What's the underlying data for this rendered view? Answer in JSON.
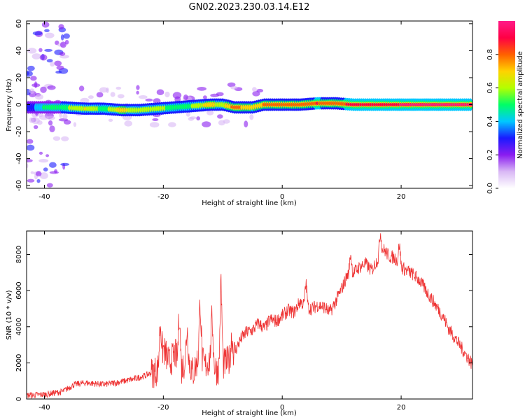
{
  "title": "GN02.2023.230.03.14.E12",
  "chart_data": [
    {
      "type": "heatmap",
      "xlabel": "Height of straight line (km)",
      "ylabel": "Frequency (Hz)",
      "xlim": [
        -43,
        32
      ],
      "ylim": [
        -62,
        62
      ],
      "xticks": [
        -40,
        -20,
        0,
        20
      ],
      "yticks": [
        -60,
        -40,
        -20,
        0,
        20,
        40,
        60
      ],
      "colorbar": {
        "label": "Normalized spectral amplitude",
        "range": [
          0,
          1
        ],
        "ticks": [
          0.0,
          0.2,
          0.4,
          0.6,
          0.8
        ],
        "colors": [
          "#ffffff",
          "#d9b8f5",
          "#8a1cf0",
          "#1a1aff",
          "#00c8ff",
          "#00ff66",
          "#b4ff00",
          "#ffd200",
          "#ff6000",
          "#ff0044",
          "#ff1a88"
        ]
      },
      "ridge": [
        {
          "x": -43,
          "f": -2,
          "a": 0.25
        },
        {
          "x": -40,
          "f": -2,
          "a": 0.45
        },
        {
          "x": -37,
          "f": -2,
          "a": 0.5
        },
        {
          "x": -33,
          "f": -3,
          "a": 0.65
        },
        {
          "x": -30,
          "f": -3,
          "a": 0.5
        },
        {
          "x": -27,
          "f": -4,
          "a": 0.7
        },
        {
          "x": -24,
          "f": -4,
          "a": 0.55
        },
        {
          "x": -21,
          "f": -3,
          "a": 0.6
        },
        {
          "x": -18,
          "f": -2,
          "a": 0.5
        },
        {
          "x": -15,
          "f": -1,
          "a": 0.55
        },
        {
          "x": -12,
          "f": 0,
          "a": 0.7
        },
        {
          "x": -10,
          "f": 0,
          "a": 0.6
        },
        {
          "x": -8,
          "f": -2,
          "a": 0.8
        },
        {
          "x": -5,
          "f": -2,
          "a": 0.65
        },
        {
          "x": -3,
          "f": 0,
          "a": 0.75
        },
        {
          "x": 0,
          "f": 0,
          "a": 0.8
        },
        {
          "x": 3,
          "f": 0,
          "a": 0.75
        },
        {
          "x": 6,
          "f": 1,
          "a": 0.85
        },
        {
          "x": 9,
          "f": 1,
          "a": 0.75
        },
        {
          "x": 12,
          "f": 0,
          "a": 0.9
        },
        {
          "x": 20,
          "f": 0,
          "a": 0.95
        },
        {
          "x": 32,
          "f": 0,
          "a": 0.95
        }
      ]
    },
    {
      "type": "line",
      "xlabel": "Height of straight line (km)",
      "ylabel": "SNR (10 * v/v)",
      "xlim": [
        -43,
        32
      ],
      "ylim": [
        0,
        9300
      ],
      "xticks": [
        -40,
        -20,
        0,
        20
      ],
      "yticks": [
        0,
        2000,
        4000,
        6000,
        8000
      ],
      "color": "#ee3333",
      "series": [
        {
          "x": [
            -43,
            -40,
            -37,
            -35,
            -33,
            -30,
            -28,
            -25,
            -23,
            -21,
            -20,
            -19,
            -18,
            -17,
            -16,
            -15,
            -14,
            -13,
            -12,
            -11,
            -10,
            -9,
            -8,
            -7,
            -6,
            -5,
            -4,
            -3,
            -2,
            -1,
            0,
            1,
            2,
            3,
            4,
            5,
            6,
            7,
            8,
            9,
            10,
            11,
            12,
            13,
            14,
            15,
            16,
            17,
            18,
            19,
            20,
            21,
            22,
            23,
            24,
            25,
            26,
            27,
            28,
            29,
            30,
            31,
            32
          ],
          "y": [
            200,
            250,
            400,
            800,
            900,
            800,
            900,
            1100,
            1300,
            1600,
            2800,
            2000,
            2500,
            1600,
            2400,
            1400,
            2400,
            1800,
            2300,
            1600,
            1900,
            2100,
            2600,
            3300,
            3700,
            3800,
            4200,
            3900,
            4400,
            4300,
            4600,
            4900,
            4800,
            5400,
            5100,
            5000,
            5200,
            5100,
            4800,
            5400,
            6100,
            6900,
            7000,
            7300,
            7500,
            7100,
            7700,
            8300,
            7900,
            7800,
            7300,
            7100,
            6900,
            6600,
            6100,
            5600,
            5100,
            4600,
            3900,
            3400,
            2900,
            2400,
            1900
          ],
          "spikes": [
            {
              "x": -20.5,
              "y": 4300
            },
            {
              "x": -17.3,
              "y": 5000
            },
            {
              "x": -16.0,
              "y": 4000
            },
            {
              "x": -13.8,
              "y": 5600
            },
            {
              "x": -11.8,
              "y": 4600
            },
            {
              "x": -10.3,
              "y": 6500
            },
            {
              "x": -8.5,
              "y": 3500
            },
            {
              "x": 4.0,
              "y": 6500
            },
            {
              "x": 11.5,
              "y": 8100
            },
            {
              "x": 16.5,
              "y": 9300
            },
            {
              "x": 19.7,
              "y": 8600
            }
          ]
        }
      ]
    }
  ]
}
